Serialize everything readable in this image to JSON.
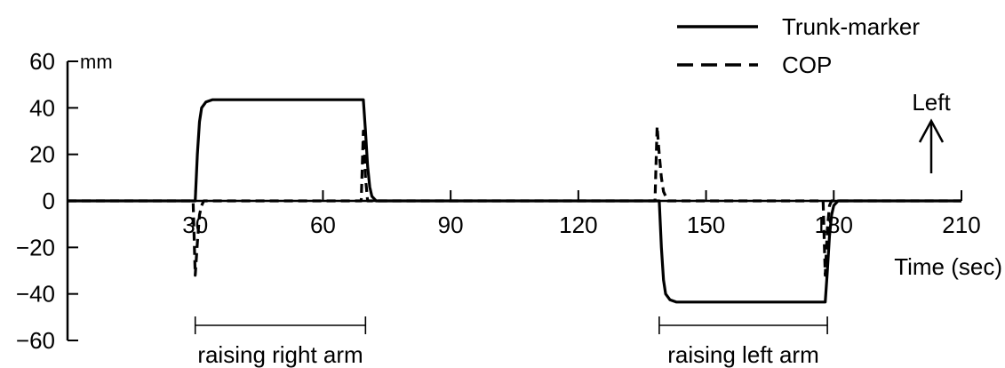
{
  "chart_data": {
    "type": "line",
    "xlabel": "Time (sec)",
    "ylabel_unit": "mm",
    "xlim": [
      0,
      210
    ],
    "ylim": [
      -60,
      60
    ],
    "x_ticks": [
      30,
      60,
      90,
      120,
      150,
      180,
      210
    ],
    "y_ticks": [
      60,
      40,
      20,
      0,
      -20,
      -40,
      -60
    ],
    "grid": false,
    "legend_position": "top-right",
    "series": [
      {
        "name": "Trunk-marker",
        "style": "solid",
        "color": "#000000",
        "points": [
          [
            0,
            0
          ],
          [
            30,
            0
          ],
          [
            30.5,
            20
          ],
          [
            31,
            34
          ],
          [
            31.5,
            40
          ],
          [
            32.5,
            42.5
          ],
          [
            34,
            43.5
          ],
          [
            69.5,
            43.5
          ],
          [
            70,
            30
          ],
          [
            70.5,
            15
          ],
          [
            71,
            6
          ],
          [
            71.5,
            2
          ],
          [
            72.5,
            0
          ],
          [
            139,
            0
          ],
          [
            139.5,
            -20
          ],
          [
            140,
            -34
          ],
          [
            140.5,
            -40
          ],
          [
            141.5,
            -42.5
          ],
          [
            143,
            -43.5
          ],
          [
            178,
            -43.5
          ],
          [
            178.5,
            -30
          ],
          [
            179,
            -15
          ],
          [
            179.5,
            -6
          ],
          [
            180,
            -2
          ],
          [
            181,
            0
          ],
          [
            210,
            0
          ]
        ]
      },
      {
        "name": "COP",
        "style": "dashed",
        "color": "#000000",
        "points": [
          [
            0,
            0
          ],
          [
            29.5,
            0
          ],
          [
            30,
            -32
          ],
          [
            30.5,
            -18
          ],
          [
            31,
            -6
          ],
          [
            31.5,
            -2
          ],
          [
            32,
            0
          ],
          [
            69,
            0
          ],
          [
            69.5,
            30
          ],
          [
            70,
            10
          ],
          [
            70.5,
            0
          ],
          [
            138,
            0
          ],
          [
            138.5,
            32
          ],
          [
            139,
            20
          ],
          [
            139.5,
            10
          ],
          [
            140,
            4
          ],
          [
            141,
            0
          ],
          [
            177.5,
            0
          ],
          [
            178,
            -32
          ],
          [
            178.5,
            -12
          ],
          [
            179,
            -2
          ],
          [
            179.5,
            0
          ],
          [
            210,
            0
          ]
        ]
      }
    ],
    "annotations": [
      {
        "label": "raising right arm",
        "x_start": 30,
        "x_end": 70
      },
      {
        "label": "raising left arm",
        "x_start": 139,
        "x_end": 178.5
      }
    ],
    "direction_label": "Left"
  }
}
